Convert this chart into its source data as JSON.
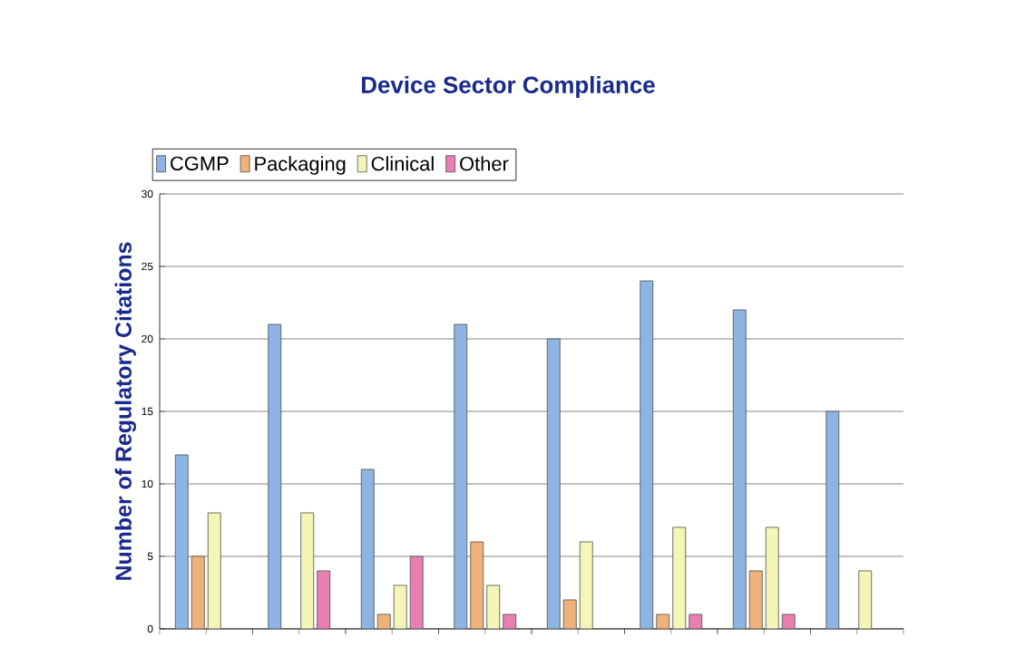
{
  "chart_data": {
    "type": "bar",
    "title": "Device Sector Compliance",
    "ylabel": "Number of Regulatory Citations",
    "categories": [
      null,
      null,
      null,
      null,
      null,
      null,
      null,
      null
    ],
    "series": [
      {
        "name": "CGMP",
        "color": "#8db4e2",
        "values": [
          12,
          21,
          11,
          21,
          20,
          24,
          22,
          15
        ]
      },
      {
        "name": "Packaging",
        "color": "#f0b27a",
        "values": [
          5,
          null,
          1,
          6,
          2,
          1,
          4,
          null
        ]
      },
      {
        "name": "Clinical",
        "color": "#f5f5b8",
        "values": [
          8,
          8,
          3,
          3,
          6,
          7,
          7,
          4
        ]
      },
      {
        "name": "Other",
        "color": "#e87fb3",
        "values": [
          null,
          4,
          5,
          1,
          null,
          1,
          1,
          null
        ]
      }
    ],
    "ylim": [
      0,
      30
    ],
    "yticks": [
      0,
      5,
      10,
      15,
      20,
      25,
      30
    ],
    "grid": "y",
    "legend": "top"
  }
}
